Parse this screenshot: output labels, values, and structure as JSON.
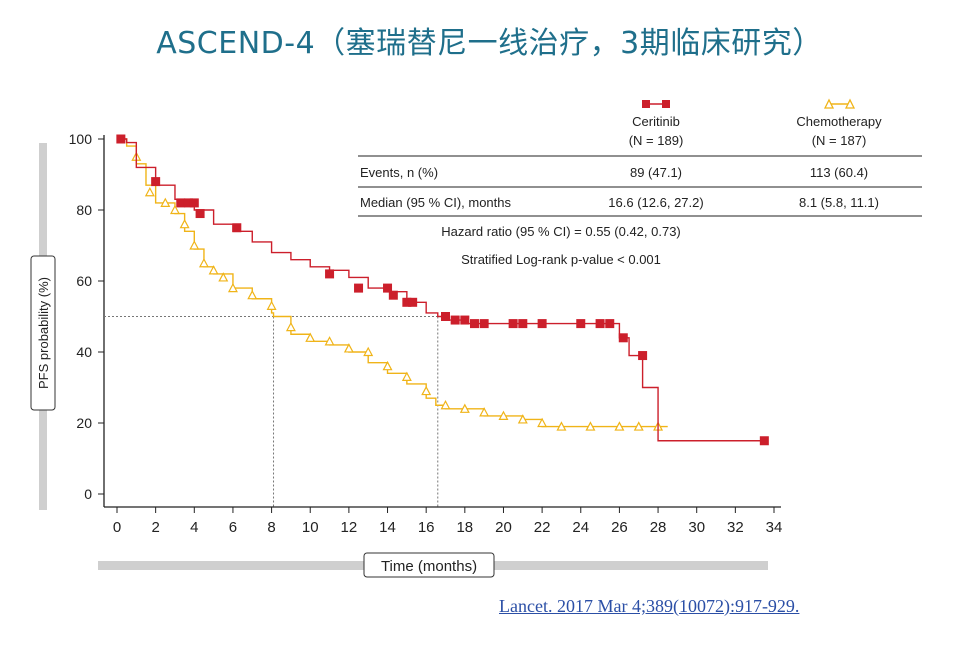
{
  "title": "ASCEND-4（塞瑞替尼一线治疗，3期临床研究）",
  "citation": "Lancet. 2017 Mar 4;389(10072):917-929.",
  "chart_data": {
    "type": "line",
    "title": "",
    "xlabel": "Time (months)",
    "ylabel": "PFS probability (%)",
    "xlim": [
      0,
      34
    ],
    "ylim": [
      0,
      100
    ],
    "x_ticks": [
      0,
      2,
      4,
      6,
      8,
      10,
      12,
      14,
      16,
      18,
      20,
      22,
      24,
      26,
      28,
      30,
      32,
      34
    ],
    "y_ticks": [
      0,
      20,
      40,
      60,
      80,
      100
    ],
    "grid": false,
    "legend": "top-right table",
    "series": [
      {
        "name": "Ceritinib",
        "n_label": "(N = 189)",
        "color": "#cc1f2b",
        "marker": "square",
        "x": [
          0,
          0.5,
          1,
          2,
          3,
          4,
          5,
          6,
          7,
          8,
          9,
          10,
          11,
          12,
          13,
          14,
          15,
          16,
          16.6,
          17,
          18,
          20,
          22,
          24,
          25,
          26,
          26.5,
          27,
          27.2,
          27.6,
          28,
          33.5
        ],
        "y": [
          100,
          99,
          92,
          87,
          83,
          80,
          76,
          74,
          71,
          68,
          66,
          64,
          63,
          61,
          58,
          57,
          54,
          51,
          50,
          49,
          48,
          48,
          48,
          48,
          48,
          44,
          39,
          39,
          30,
          30,
          15,
          15
        ],
        "censored_x": [
          0.2,
          2,
          3.3,
          3.7,
          4,
          4.3,
          6.2,
          11,
          12.5,
          14,
          14.3,
          15,
          15.3,
          17,
          17.5,
          18,
          18.5,
          19,
          20.5,
          21,
          22,
          24,
          25,
          25.5,
          26.2,
          27.2,
          33.5
        ],
        "censored_y": [
          100,
          88,
          82,
          82,
          82,
          79,
          75,
          62,
          58,
          58,
          56,
          54,
          54,
          50,
          49,
          49,
          48,
          48,
          48,
          48,
          48,
          48,
          48,
          48,
          44,
          39,
          15
        ]
      },
      {
        "name": "Chemotherapy",
        "n_label": "(N = 187)",
        "color": "#f0b418",
        "marker": "triangle",
        "x": [
          0,
          0.5,
          1,
          1.5,
          2,
          3,
          3.5,
          4,
          4.5,
          5,
          6,
          7,
          8,
          8.1,
          9,
          10,
          11,
          12,
          13,
          14,
          15,
          16,
          16.5,
          17,
          18,
          19,
          20,
          21,
          22,
          24,
          26,
          28.5
        ],
        "y": [
          100,
          98,
          93,
          87,
          82,
          79,
          74,
          69,
          64,
          62,
          58,
          55,
          51,
          50,
          45,
          43,
          42,
          40,
          37,
          34,
          31,
          27,
          25,
          24,
          24,
          22,
          22,
          21,
          19,
          19,
          19,
          19
        ],
        "censored_x": [
          1,
          1.7,
          2.5,
          3,
          3.5,
          4,
          4.5,
          5,
          5.5,
          6,
          7,
          8,
          9,
          10,
          11,
          12,
          13,
          14,
          15,
          16,
          17,
          18,
          19,
          20,
          21,
          22,
          23,
          24.5,
          26,
          27,
          28
        ],
        "censored_y": [
          95,
          85,
          82,
          80,
          76,
          70,
          65,
          63,
          61,
          58,
          56,
          53,
          47,
          44,
          43,
          41,
          40,
          36,
          33,
          29,
          25,
          24,
          23,
          22,
          21,
          20,
          19,
          19,
          19,
          19,
          19
        ]
      }
    ],
    "table": {
      "rows": [
        {
          "label": "Events, n (%)",
          "ceritinib": "89 (47.1)",
          "chemotherapy": "113 (60.4)"
        },
        {
          "label": "Median (95 % CI), months",
          "ceritinib": "16.6 (12.6, 27.2)",
          "chemotherapy": "8.1 (5.8, 11.1)"
        }
      ],
      "hazard_ratio": "Hazard ratio (95 % CI) = 0.55 (0.42, 0.73)",
      "p_value": "Stratified Log-rank p-value < 0.001"
    },
    "median_reference": {
      "y": 50,
      "ceritinib_x": 16.6,
      "chemotherapy_x": 8.1
    }
  }
}
